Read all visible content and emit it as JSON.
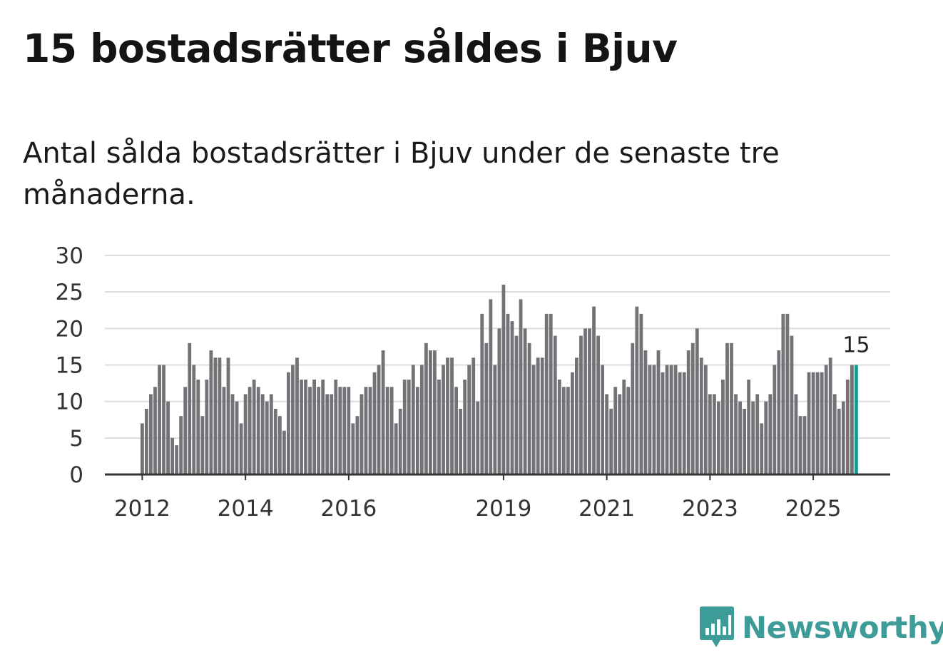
{
  "title": "15 bostadsrätter såldes i Bjuv",
  "subtitle": "Antal sålda bostadsrätter i Bjuv under de senaste tre månaderna.",
  "brand": "Newsworthy",
  "colors": {
    "bar": "#737276",
    "highlight": "#119c91",
    "brand": "#3e9c98"
  },
  "chart_data": {
    "type": "bar",
    "title": "15 bostadsrätter såldes i Bjuv",
    "xlabel": "",
    "ylabel": "",
    "ylim": [
      0,
      30
    ],
    "yticks": [
      0,
      5,
      10,
      15,
      20,
      25,
      30
    ],
    "grid": true,
    "start": "2012-01",
    "xtick_labels": [
      {
        "label": "2012",
        "index": 0
      },
      {
        "label": "2014",
        "index": 24
      },
      {
        "label": "2016",
        "index": 48
      },
      {
        "label": "2019",
        "index": 84
      },
      {
        "label": "2021",
        "index": 108
      },
      {
        "label": "2023",
        "index": 132
      },
      {
        "label": "2025",
        "index": 156
      }
    ],
    "values": [
      7,
      9,
      11,
      12,
      15,
      15,
      10,
      5,
      4,
      8,
      12,
      18,
      15,
      13,
      8,
      13,
      17,
      16,
      16,
      12,
      16,
      11,
      10,
      7,
      11,
      12,
      13,
      12,
      11,
      10,
      11,
      9,
      8,
      6,
      14,
      15,
      16,
      13,
      13,
      12,
      13,
      12,
      13,
      11,
      11,
      13,
      12,
      12,
      12,
      7,
      8,
      11,
      12,
      12,
      14,
      15,
      17,
      12,
      12,
      7,
      9,
      13,
      13,
      15,
      12,
      15,
      18,
      17,
      17,
      13,
      15,
      16,
      16,
      12,
      9,
      13,
      15,
      16,
      10,
      22,
      18,
      24,
      15,
      20,
      26,
      22,
      21,
      19,
      24,
      20,
      18,
      15,
      16,
      16,
      22,
      22,
      19,
      13,
      12,
      12,
      14,
      16,
      19,
      20,
      20,
      23,
      19,
      15,
      11,
      9,
      12,
      11,
      13,
      12,
      18,
      23,
      22,
      17,
      15,
      15,
      17,
      14,
      15,
      15,
      15,
      14,
      14,
      17,
      18,
      20,
      16,
      15,
      11,
      11,
      10,
      13,
      18,
      18,
      11,
      10,
      9,
      13,
      10,
      11,
      7,
      10,
      11,
      15,
      17,
      22,
      22,
      19,
      11,
      8,
      8,
      14,
      14,
      14,
      14,
      15,
      16,
      11,
      9,
      10,
      13,
      15,
      15
    ],
    "highlight_last": true,
    "annotations": [
      {
        "index": 166,
        "text": "15"
      }
    ]
  }
}
